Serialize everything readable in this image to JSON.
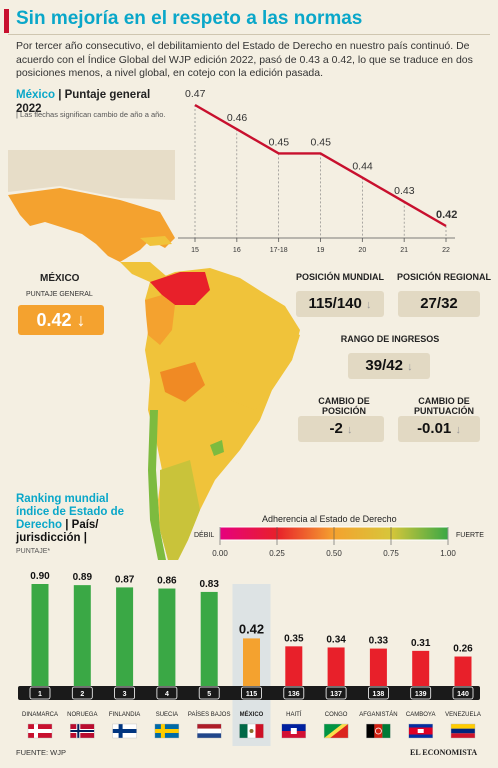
{
  "header": {
    "title": "Sin mejoría en el respeto a las normas",
    "intro": "Por tercer año consecutivo, el debilitamiento del Estado de Derecho en nuestro país continuó. De acuerdo con el Índice Global del WJP edición 2022, pasó de 0.43 a 0.42, lo que se traduce en dos posiciones menos, a nivel global, en cotejo con la edición pasada."
  },
  "trend": {
    "title_country": "México",
    "title_rest": "| Puntaje general 2022",
    "note": "| Las flechas significan cambio de año a año."
  },
  "mexico": {
    "label": "MÉXICO",
    "sublabel": "PUNTAJE GENERAL",
    "score": "0.42 ↓"
  },
  "stats": {
    "pos_mundial_label": "POSICIÓN MUNDIAL",
    "pos_mundial_value": "115/140",
    "pos_regional_label": "POSICIÓN REGIONAL",
    "pos_regional_value": "27/32",
    "rango_label": "RANGO DE INGRESOS",
    "rango_value": "39/42",
    "cambio_pos_label": "CAMBIO DE POSICIÓN",
    "cambio_pos_value": "-2",
    "cambio_punt_label": "CAMBIO DE PUNTUACIÓN",
    "cambio_punt_value": "-0.01",
    "arrow": "↓"
  },
  "ranking": {
    "title": "Ranking mundial índice de Estado de Derecho",
    "title_rest": "| País/ jurisdicción |",
    "sub": "PUNTAJE*"
  },
  "legend": {
    "title": "Adherencia al Estado de Derecho",
    "weak": "DÉBIL",
    "strong": "FUERTE",
    "ticks": [
      "0.00",
      "0.25",
      "0.50",
      "0.75",
      "1.00"
    ]
  },
  "footer": {
    "source": "FUENTE: WJP",
    "brand": "EL ECONOMISTA"
  },
  "chart_data": [
    {
      "type": "line",
      "x": [
        "15",
        "16",
        "17-18",
        "19",
        "20",
        "21",
        "22"
      ],
      "values": [
        0.47,
        0.46,
        0.45,
        0.45,
        0.44,
        0.43,
        0.42
      ],
      "labels": [
        "0.47",
        "0.46",
        "0.45",
        "0.45",
        "0.44",
        "0.43",
        "0.42"
      ],
      "color": "#c8102e"
    },
    {
      "type": "bar",
      "categories": [
        "DINAMARCA",
        "NORUEGA",
        "FINLANDIA",
        "SUECIA",
        "PAÍSES BAJOS",
        "MÉXICO",
        "HAITÍ",
        "CONGO",
        "AFGANISTÁN",
        "CAMBOYA",
        "VENEZUELA"
      ],
      "values": [
        0.9,
        0.89,
        0.87,
        0.86,
        0.83,
        0.42,
        0.35,
        0.34,
        0.33,
        0.31,
        0.26
      ],
      "labels": [
        "0.90",
        "0.89",
        "0.87",
        "0.86",
        "0.83",
        "0.42",
        "0.35",
        "0.34",
        "0.33",
        "0.31",
        "0.26"
      ],
      "ranks": [
        "1",
        "2",
        "3",
        "4",
        "5",
        "115",
        "136",
        "137",
        "138",
        "139",
        "140"
      ],
      "colors": [
        "#3aa845",
        "#3aa845",
        "#3aa845",
        "#3aa845",
        "#3aa845",
        "#f4a22f",
        "#e8202a",
        "#e8202a",
        "#e8202a",
        "#e8202a",
        "#e8202a"
      ]
    }
  ]
}
